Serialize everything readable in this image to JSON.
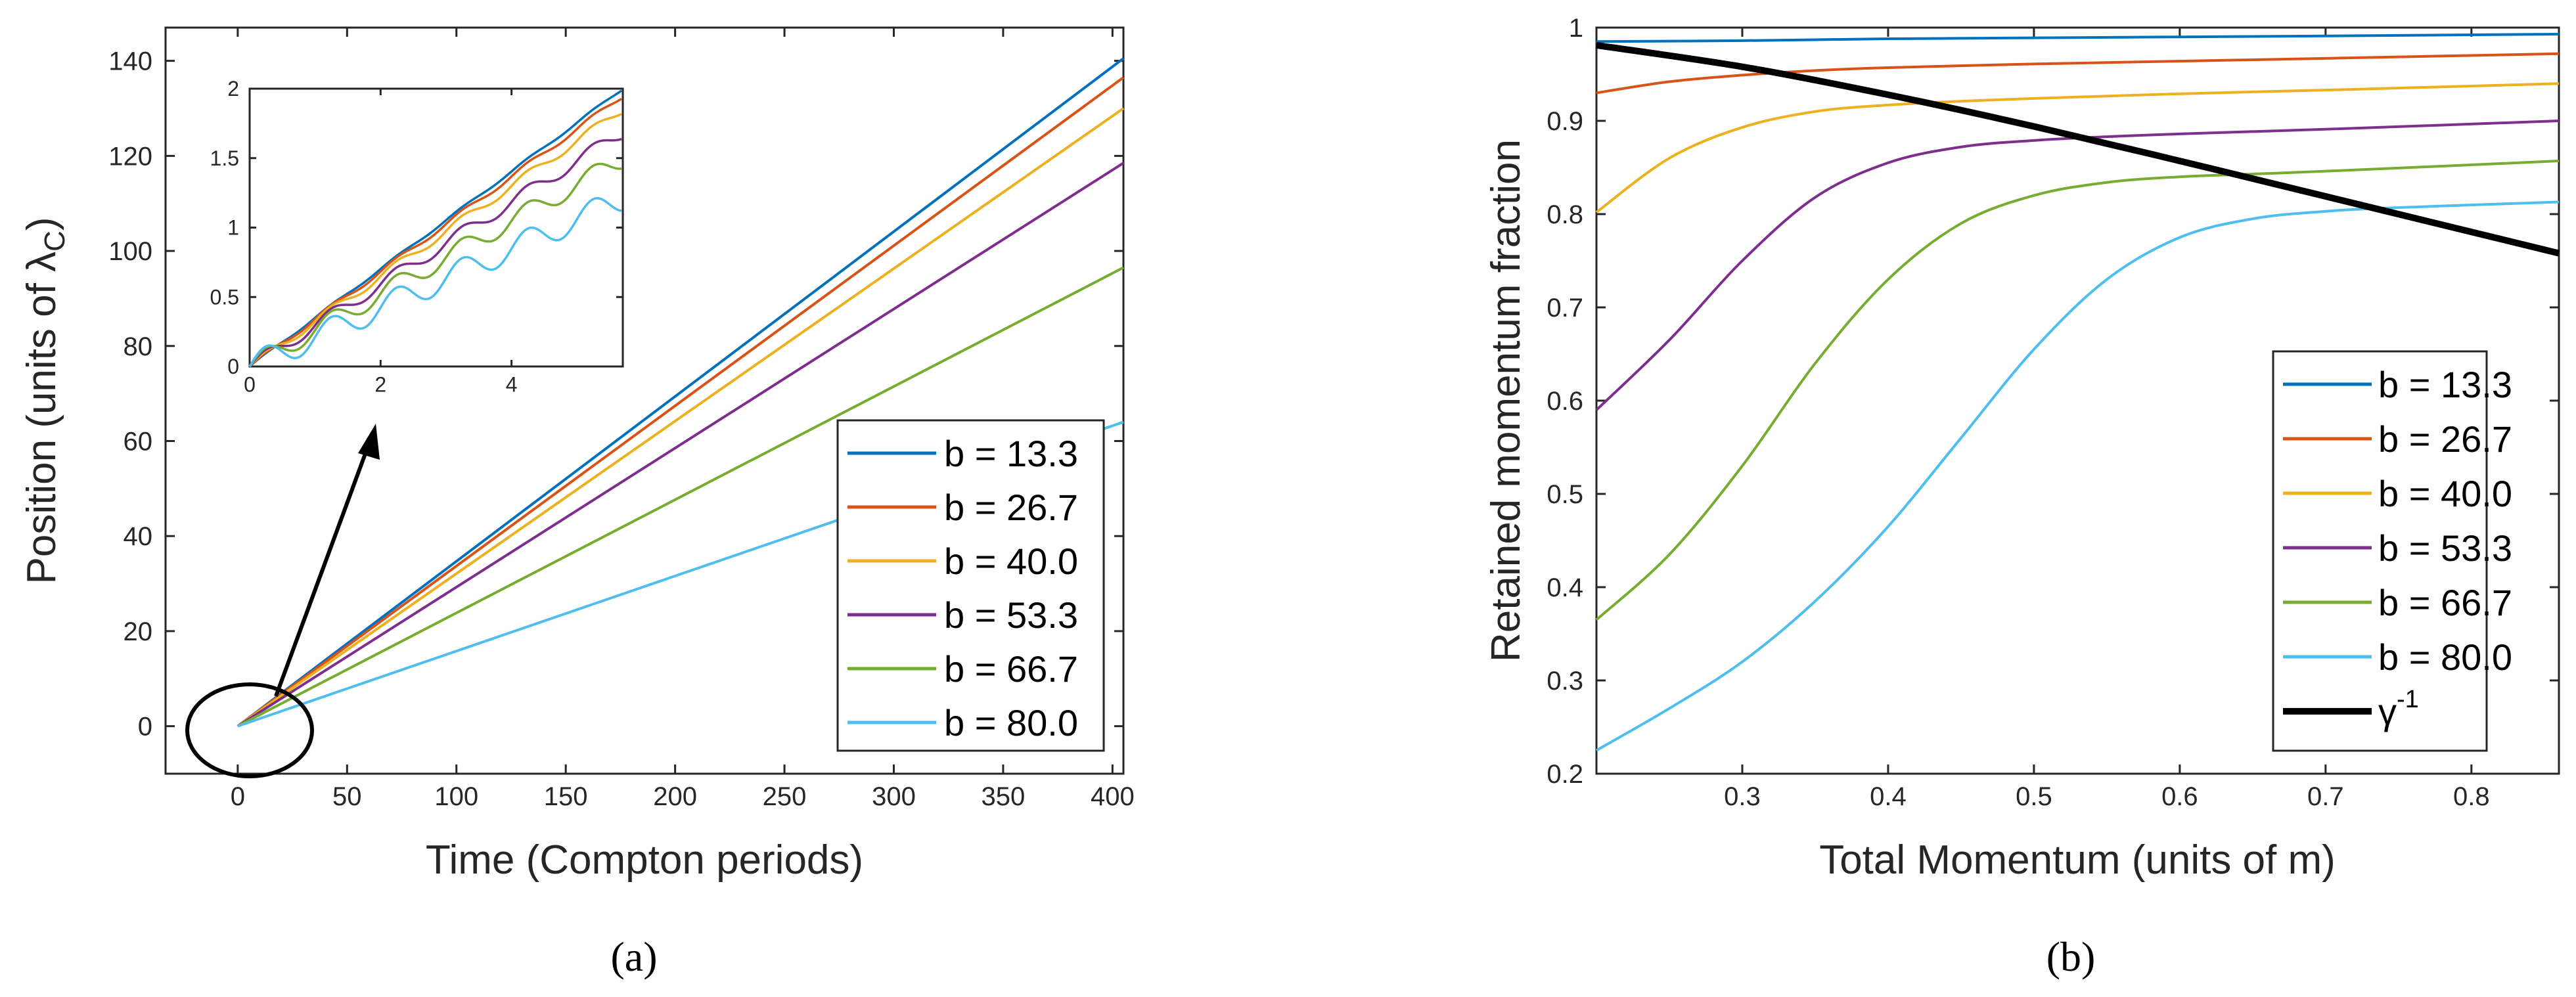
{
  "panel_labels": {
    "a": "(a)",
    "b": "(b)"
  },
  "colors": {
    "b13_3": "#0072BD",
    "b26_7": "#D95319",
    "b40_0": "#EDB120",
    "b53_3": "#7E2F8E",
    "b66_7": "#77AC30",
    "b80_0": "#4DBEEE",
    "gamma": "#000000",
    "axis": "#262626"
  },
  "chart_data": [
    {
      "id": "a_main",
      "type": "line",
      "title": "",
      "xlabel": "Time (Compton periods)",
      "ylabel_main": "Position (units of ",
      "ylabel_symbol": "λ",
      "ylabel_sub": "C",
      "ylabel_close": ")",
      "xlim": [
        -33,
        405
      ],
      "ylim": [
        -10,
        147
      ],
      "xticks": [
        0,
        50,
        100,
        150,
        200,
        250,
        300,
        350,
        400
      ],
      "xticklabels": [
        "0",
        "50",
        "100",
        "150",
        "200",
        "250",
        "300",
        "350",
        "400"
      ],
      "yticks": [
        0,
        20,
        40,
        60,
        80,
        100,
        120,
        140
      ],
      "yticklabels": [
        "0",
        "20",
        "40",
        "60",
        "80",
        "100",
        "120",
        "140"
      ],
      "legend_position": "lower-right",
      "series": [
        {
          "name": "b = 13.3",
          "color_key": "b13_3",
          "x": [
            0,
            405
          ],
          "y": [
            0,
            140.5
          ]
        },
        {
          "name": "b = 26.7",
          "color_key": "b26_7",
          "x": [
            0,
            405
          ],
          "y": [
            0,
            136.5
          ]
        },
        {
          "name": "b = 40.0",
          "color_key": "b40_0",
          "x": [
            0,
            405
          ],
          "y": [
            0,
            130.0
          ]
        },
        {
          "name": "b = 53.3",
          "color_key": "b53_3",
          "x": [
            0,
            405
          ],
          "y": [
            0,
            118.5
          ]
        },
        {
          "name": "b = 66.7",
          "color_key": "b66_7",
          "x": [
            0,
            405
          ],
          "y": [
            0,
            96.5
          ]
        },
        {
          "name": "b = 80.0",
          "color_key": "b80_0",
          "x": [
            0,
            405
          ],
          "y": [
            0,
            64.0
          ]
        }
      ]
    },
    {
      "id": "a_inset",
      "type": "line",
      "title": "",
      "xlim": [
        0,
        5.7
      ],
      "ylim": [
        0,
        2
      ],
      "xticks": [
        0,
        2,
        4
      ],
      "xticklabels": [
        "0",
        "2",
        "4"
      ],
      "yticks": [
        0,
        0.5,
        1,
        1.5,
        2
      ],
      "yticklabels": [
        "0",
        "0.5",
        "1",
        "1.5",
        "2"
      ],
      "wobble_period": 1,
      "series": [
        {
          "name": "b = 13.3",
          "color_key": "b13_3",
          "slope": 0.351,
          "amp": 0.004
        },
        {
          "name": "b = 26.7",
          "color_key": "b26_7",
          "slope": 0.342,
          "amp": 0.008
        },
        {
          "name": "b = 40.0",
          "color_key": "b40_0",
          "slope": 0.325,
          "amp": 0.014
        },
        {
          "name": "b = 53.3",
          "color_key": "b53_3",
          "slope": 0.296,
          "amp": 0.022
        },
        {
          "name": "b = 66.7",
          "color_key": "b66_7",
          "slope": 0.262,
          "amp": 0.032
        },
        {
          "name": "b = 80.0",
          "color_key": "b80_0",
          "slope": 0.212,
          "amp": 0.042
        }
      ]
    },
    {
      "id": "b_main",
      "type": "line",
      "title": "",
      "xlabel": "Total Momentum (units of m)",
      "ylabel": "Retained momentum fraction",
      "xlim": [
        0.2,
        0.86
      ],
      "ylim": [
        0.2,
        1.0
      ],
      "xticks": [
        0.3,
        0.4,
        0.5,
        0.6,
        0.7,
        0.8
      ],
      "xticklabels": [
        "0.3",
        "0.4",
        "0.5",
        "0.6",
        "0.7",
        "0.8"
      ],
      "yticks": [
        0.2,
        0.3,
        0.4,
        0.5,
        0.6,
        0.7,
        0.8,
        0.9,
        1.0
      ],
      "yticklabels": [
        "0.2",
        "0.3",
        "0.4",
        "0.5",
        "0.6",
        "0.7",
        "0.8",
        "0.9",
        "1"
      ],
      "legend_position": "lower-right",
      "series": [
        {
          "name": "b = 13.3",
          "color_key": "b13_3",
          "x": [
            0.2,
            0.3,
            0.4,
            0.5,
            0.6,
            0.7,
            0.86
          ],
          "y": [
            0.985,
            0.986,
            0.988,
            0.989,
            0.99,
            0.991,
            0.993
          ]
        },
        {
          "name": "b = 26.7",
          "color_key": "b26_7",
          "x": [
            0.2,
            0.25,
            0.3,
            0.35,
            0.4,
            0.5,
            0.6,
            0.7,
            0.86
          ],
          "y": [
            0.93,
            0.942,
            0.949,
            0.954,
            0.957,
            0.961,
            0.964,
            0.967,
            0.972
          ]
        },
        {
          "name": "b = 40.0",
          "color_key": "b40_0",
          "x": [
            0.2,
            0.25,
            0.3,
            0.35,
            0.4,
            0.45,
            0.5,
            0.6,
            0.7,
            0.86
          ],
          "y": [
            0.802,
            0.86,
            0.893,
            0.91,
            0.917,
            0.921,
            0.924,
            0.929,
            0.933,
            0.94
          ]
        },
        {
          "name": "b = 53.3",
          "color_key": "b53_3",
          "x": [
            0.2,
            0.25,
            0.3,
            0.35,
            0.4,
            0.45,
            0.5,
            0.55,
            0.6,
            0.7,
            0.86
          ],
          "y": [
            0.59,
            0.665,
            0.75,
            0.818,
            0.855,
            0.872,
            0.879,
            0.883,
            0.886,
            0.891,
            0.9
          ]
        },
        {
          "name": "b = 66.7",
          "color_key": "b66_7",
          "x": [
            0.2,
            0.25,
            0.3,
            0.35,
            0.4,
            0.45,
            0.5,
            0.55,
            0.6,
            0.65,
            0.7,
            0.86
          ],
          "y": [
            0.365,
            0.435,
            0.53,
            0.64,
            0.73,
            0.79,
            0.82,
            0.834,
            0.84,
            0.843,
            0.846,
            0.857
          ]
        },
        {
          "name": "b = 80.0",
          "color_key": "b80_0",
          "x": [
            0.2,
            0.25,
            0.3,
            0.35,
            0.4,
            0.45,
            0.5,
            0.55,
            0.6,
            0.65,
            0.7,
            0.75,
            0.86
          ],
          "y": [
            0.225,
            0.27,
            0.32,
            0.385,
            0.465,
            0.56,
            0.655,
            0.73,
            0.775,
            0.795,
            0.803,
            0.807,
            0.813
          ]
        },
        {
          "name": "γ-1",
          "color_key": "gamma",
          "bold": true,
          "x": [
            0.2,
            0.3,
            0.4,
            0.5,
            0.6,
            0.7,
            0.86
          ],
          "y": [
            0.981,
            0.958,
            0.928,
            0.894,
            0.857,
            0.819,
            0.758
          ]
        }
      ],
      "legend_gamma_base": "γ",
      "legend_gamma_sup": "-1"
    }
  ]
}
